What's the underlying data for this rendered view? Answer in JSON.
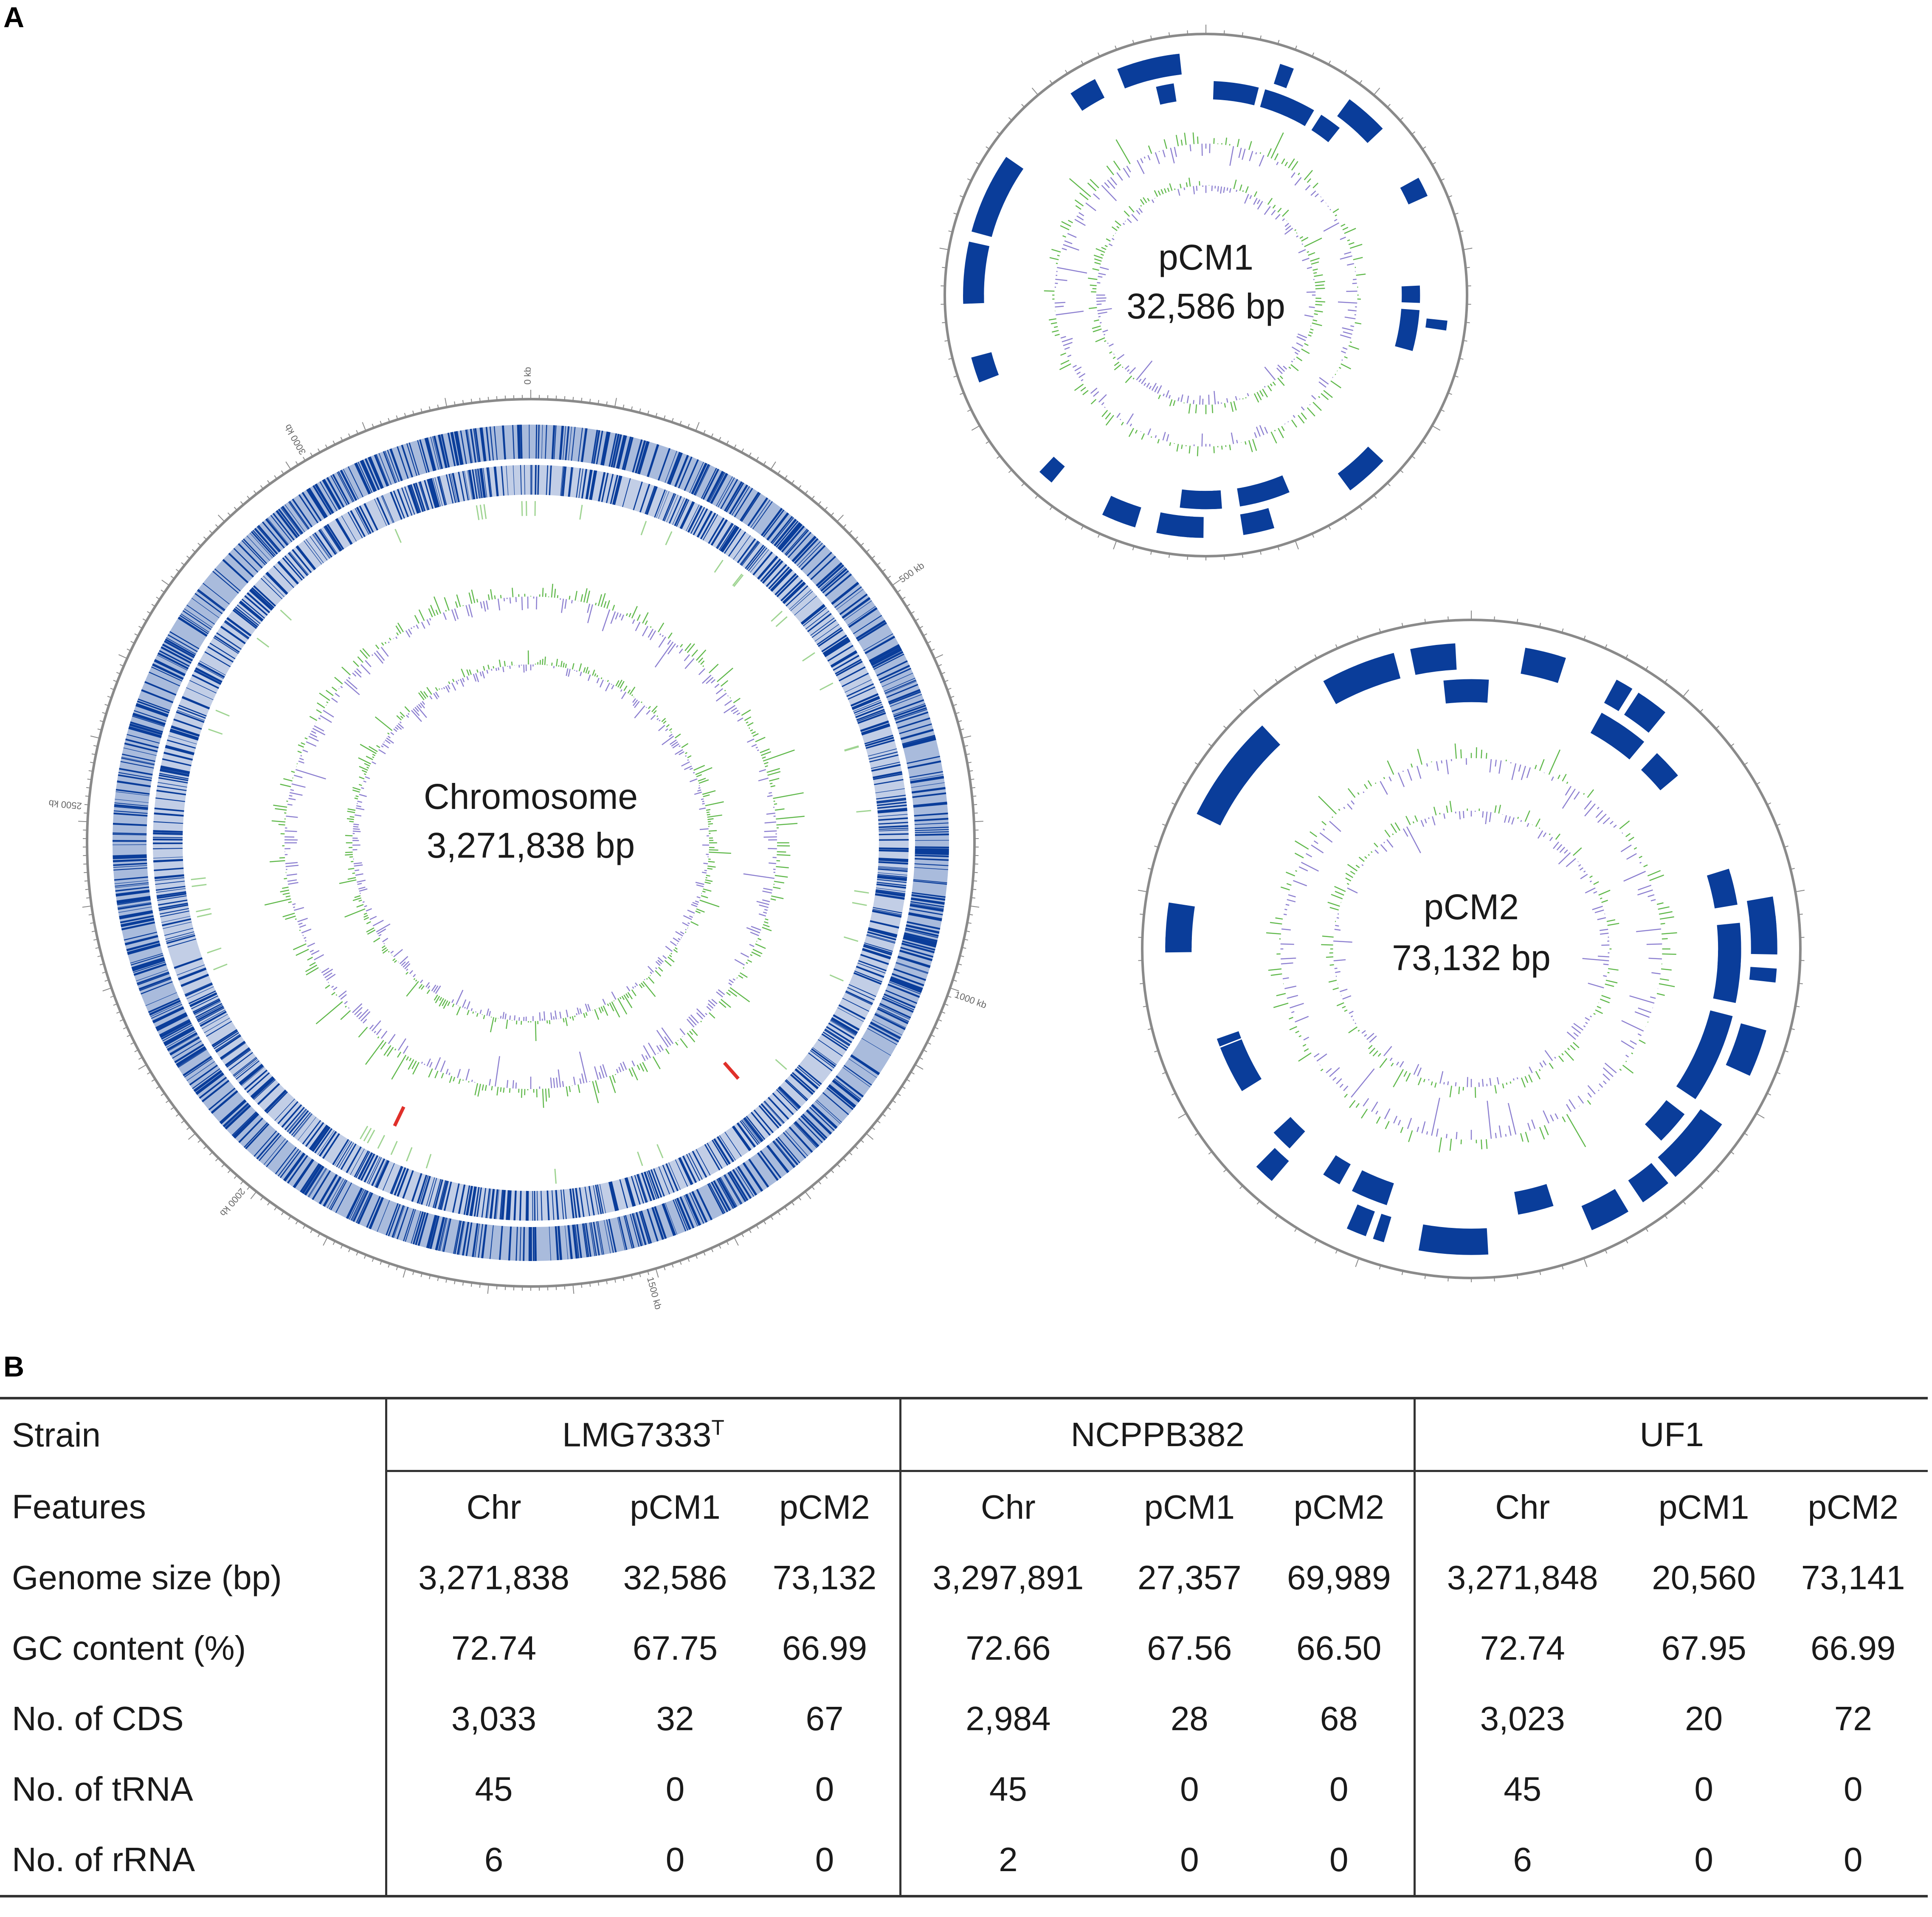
{
  "panels": {
    "a": "A",
    "b": "B"
  },
  "maps": [
    {
      "id": "chromosome",
      "name": "Chromosome",
      "size": "3,271,838 bp",
      "ticks": [
        "0 kb",
        "500 kb",
        "1000 kb",
        "1500 kb",
        "2000 kb",
        "2500 kb",
        "3000 kb"
      ]
    },
    {
      "id": "pcm1",
      "name": "pCM1",
      "size": "32,586 bp"
    },
    {
      "id": "pcm2",
      "name": "pCM2",
      "size": "73,132 bp"
    }
  ],
  "colors": {
    "cds": "#0a3d9a",
    "gc_content": "#5fb84a",
    "gc_skew": "#8c7fd0",
    "rna": "#e0302a",
    "ring": "#8a8a8a"
  },
  "table": {
    "strain_label": "Strain",
    "features_label": "Features",
    "strains": [
      {
        "name": "LMG7333",
        "sup": "T",
        "columns": [
          "Chr",
          "pCM1",
          "pCM2"
        ]
      },
      {
        "name": "NCPPB382",
        "sup": "",
        "columns": [
          "Chr",
          "pCM1",
          "pCM2"
        ]
      },
      {
        "name": "UF1",
        "sup": "",
        "columns": [
          "Chr",
          "pCM1",
          "pCM2"
        ]
      }
    ],
    "rows": [
      {
        "label": "Genome size (bp)",
        "values": [
          "3,271,838",
          "32,586",
          "73,132",
          "3,297,891",
          "27,357",
          "69,989",
          "3,271,848",
          "20,560",
          "73,141"
        ]
      },
      {
        "label": "GC content (%)",
        "values": [
          "72.74",
          "67.75",
          "66.99",
          "72.66",
          "67.56",
          "66.50",
          "72.74",
          "67.95",
          "66.99"
        ]
      },
      {
        "label": "No. of CDS",
        "values": [
          "3,033",
          "32",
          "67",
          "2,984",
          "28",
          "68",
          "3,023",
          "20",
          "72"
        ]
      },
      {
        "label": "No. of tRNA",
        "values": [
          "45",
          "0",
          "0",
          "45",
          "0",
          "0",
          "45",
          "0",
          "0"
        ]
      },
      {
        "label": "No. of rRNA",
        "values": [
          "6",
          "0",
          "0",
          "2",
          "0",
          "0",
          "6",
          "0",
          "0"
        ]
      }
    ]
  }
}
